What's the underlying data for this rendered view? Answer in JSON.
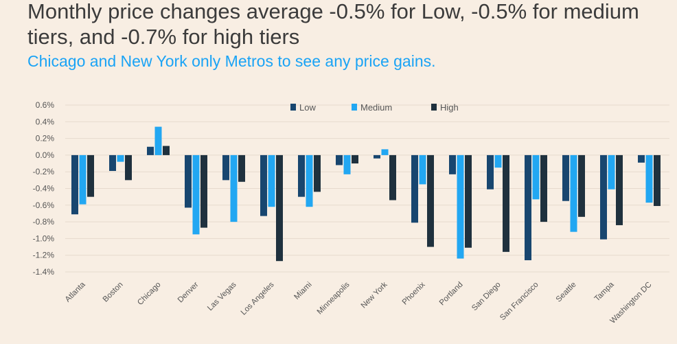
{
  "title": "Monthly price changes average -0.5% for Low, -0.5% for medium tiers, and -0.7% for high tiers",
  "subtitle": "Chicago and New York only Metros to see any price gains.",
  "colors": {
    "low": "#18466f",
    "medium": "#22a7f2",
    "high": "#1f313e"
  },
  "chart_data": {
    "type": "bar",
    "title": "Monthly price changes average -0.5% for Low, -0.5% for medium tiers, and -0.7% for high tiers",
    "subtitle": "Chicago and New York only Metros to see any price gains.",
    "xlabel": "",
    "ylabel": "",
    "ylim": [
      -1.4,
      0.6
    ],
    "yticks": [
      0.6,
      0.4,
      0.2,
      0.0,
      -0.2,
      -0.4,
      -0.6,
      -0.8,
      -1.0,
      -1.2,
      -1.4
    ],
    "ytick_labels": [
      "0.6%",
      "0.4%",
      "0.2%",
      "0.0%",
      "-0.2%",
      "-0.4%",
      "-0.6%",
      "-0.8%",
      "-1.0%",
      "-1.2%",
      "-1.4%"
    ],
    "legend_position": "top-center",
    "categories": [
      "Atlanta",
      "Boston",
      "Chicago",
      "Denver",
      "Las Vegas",
      "Los Angeles",
      "Miami",
      "Minneapolis",
      "New York",
      "Phoenix",
      "Portland",
      "San Diego",
      "San Francisco",
      "Seattle",
      "Tampa",
      "Washington DC"
    ],
    "series": [
      {
        "name": "Low",
        "values": [
          -0.71,
          -0.19,
          0.1,
          -0.63,
          -0.3,
          -0.73,
          -0.5,
          -0.12,
          -0.04,
          -0.81,
          -0.23,
          -0.41,
          -1.26,
          -0.55,
          -1.01,
          -0.09
        ]
      },
      {
        "name": "Medium",
        "values": [
          -0.59,
          -0.08,
          0.34,
          -0.95,
          -0.8,
          -0.62,
          -0.62,
          -0.23,
          0.07,
          -0.35,
          -1.24,
          -0.15,
          -0.53,
          -0.92,
          -0.41,
          -0.57
        ]
      },
      {
        "name": "High",
        "values": [
          -0.5,
          -0.3,
          0.11,
          -0.87,
          -0.32,
          -1.27,
          -0.44,
          -0.1,
          -0.54,
          -1.1,
          -1.11,
          -1.16,
          -0.8,
          -0.74,
          -0.84,
          -0.61
        ]
      }
    ]
  }
}
